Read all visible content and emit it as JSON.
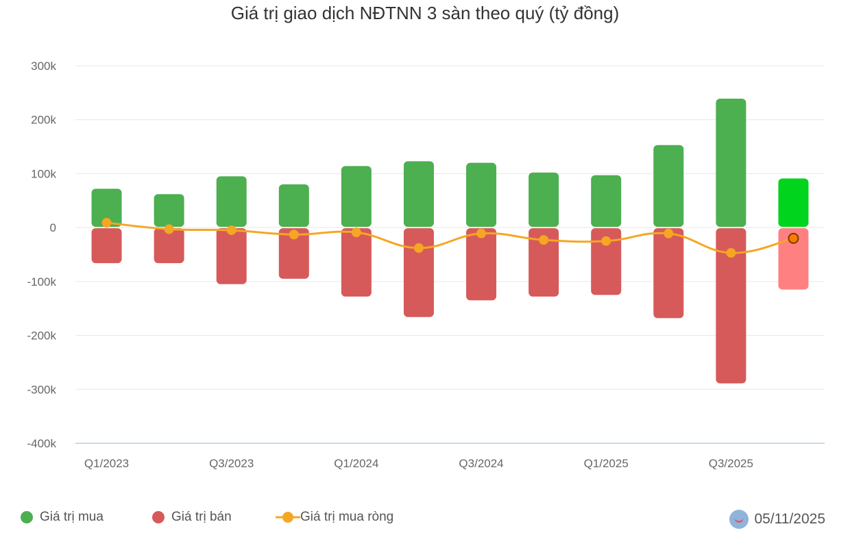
{
  "chart_data": {
    "type": "bar",
    "title": "Giá trị giao dịch NĐTNN 3 sàn theo quý (tỷ đồng)",
    "categories": [
      "Q1/2023",
      "Q2/2023",
      "Q3/2023",
      "Q4/2023",
      "Q1/2024",
      "Q2/2024",
      "Q3/2024",
      "Q4/2024",
      "Q1/2025",
      "Q2/2025",
      "Q3/2025",
      "Q4/2025"
    ],
    "x_tick_labels": [
      "Q1/2023",
      "Q3/2023",
      "Q1/2024",
      "Q3/2024",
      "Q1/2025",
      "Q3/2025"
    ],
    "y_tick_labels": [
      "300k",
      "200k",
      "100k",
      "0",
      "-100k",
      "-200k",
      "-300k",
      "-400k"
    ],
    "ylim": [
      -400000,
      300000
    ],
    "grid": true,
    "legend_placement": "bottom-left",
    "series": [
      {
        "name": "Giá trị mua",
        "type": "bar",
        "color": "#4caf50",
        "highlight_color": "#00d41c",
        "values": [
          72000,
          62000,
          95000,
          80000,
          114000,
          123000,
          120000,
          102000,
          97000,
          153000,
          239000,
          91000
        ]
      },
      {
        "name": "Giá trị bán",
        "type": "bar",
        "color": "#d65a5a",
        "highlight_color": "#ff8080",
        "values": [
          -66000,
          -66000,
          -105000,
          -95000,
          -128000,
          -166000,
          -135000,
          -128000,
          -125000,
          -168000,
          -289000,
          -115000
        ]
      },
      {
        "name": "Giá trị mua ròng",
        "type": "line",
        "color": "#f5a623",
        "values": [
          9000,
          -3000,
          -5000,
          -13000,
          -9000,
          -38000,
          -11000,
          -23000,
          -25000,
          -11000,
          -47000,
          -20000
        ]
      }
    ]
  },
  "footer": {
    "date": "05/11/2025"
  }
}
